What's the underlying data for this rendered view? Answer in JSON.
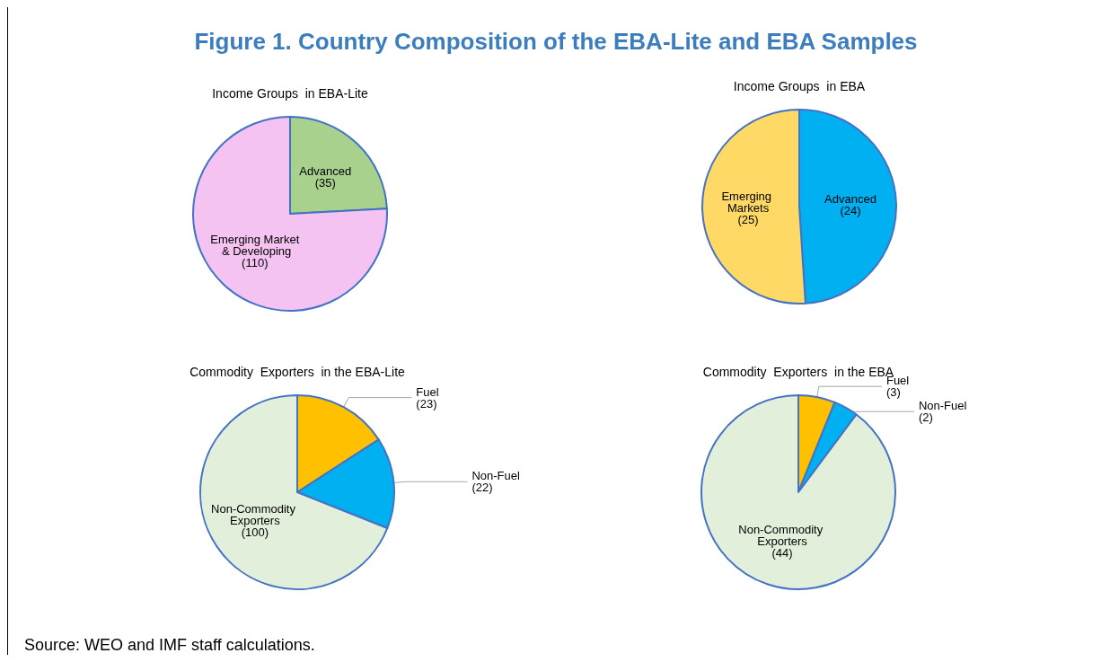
{
  "chart_data": [
    {
      "type": "other",
      "title": "Figure 1. Country Composition of the EBA-Lite and EBA Samples",
      "annotations": [
        "Source: WEO and IMF staff calculations."
      ]
    },
    {
      "type": "pie",
      "title": "Income Groups  in EBA-Lite",
      "categories": [
        "Advanced",
        "Emerging Market & Developing"
      ],
      "values": [
        35,
        110
      ],
      "value_labels": [
        "(35)",
        "(110)"
      ],
      "colors": [
        "#a9d18e",
        "#f5c3f2"
      ]
    },
    {
      "type": "pie",
      "title": "Income Groups  in EBA",
      "categories": [
        "Advanced",
        "Emerging Markets"
      ],
      "values": [
        24,
        25
      ],
      "value_labels": [
        "(24)",
        "(25)"
      ],
      "colors": [
        "#00b0f0",
        "#ffd966"
      ]
    },
    {
      "type": "pie",
      "title": "Commodity  Exporters  in the EBA-Lite",
      "categories": [
        "Fuel",
        "Non-Fuel",
        "Non-Commodity Exporters"
      ],
      "values": [
        23,
        22,
        100
      ],
      "value_labels": [
        "(23)",
        "(22)",
        "(100)"
      ],
      "colors": [
        "#ffc000",
        "#00b0f0",
        "#e2efda"
      ]
    },
    {
      "type": "pie",
      "title": "Commodity  Exporters  in the EBA",
      "categories": [
        "Fuel",
        "Non-Fuel",
        "Non-Commodity Exporters"
      ],
      "values": [
        3,
        2,
        44
      ],
      "value_labels": [
        "(3)",
        "(2)",
        "(44)"
      ],
      "colors": [
        "#ffc000",
        "#00b0f0",
        "#e2efda"
      ]
    }
  ]
}
